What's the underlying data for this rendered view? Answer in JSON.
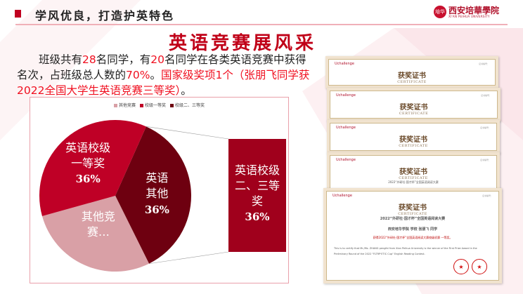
{
  "header": {
    "title": "学风优良，打造护英特色",
    "logo": {
      "name": "西安培華學院",
      "english": "XI'AN PEIHUA UNIVERSITY",
      "seal": "培华"
    }
  },
  "main_title": "英语竞赛展风采",
  "paragraph": {
    "p1": "班级共有",
    "n1": "28",
    "p2": "名同学，有",
    "n2": "20",
    "p3": "名同学在各类英语竞赛中获得名次，占班级总人数的",
    "n3": "70%",
    "p4": "。",
    "highlight": "国家级奖项1个（张朋飞同学获2022全国大学生英语竞赛三等奖）",
    "p5": "。"
  },
  "chart_data": {
    "type": "pie-of-bar",
    "legend": [
      "其他竞赛",
      "校级一等奖",
      "校级二、三等奖"
    ],
    "legend_placement": "top",
    "slices": [
      {
        "label": "英语其他",
        "line1": "英语",
        "line2": "其他",
        "value": 36,
        "pct": "36%",
        "color": "#6e0010"
      },
      {
        "label": "其他竞赛…",
        "line1": "其他竞",
        "line2": "赛…",
        "value": 28,
        "pct": "",
        "color": "#d9a0a6"
      },
      {
        "label": "英语校级一等奖",
        "line1": "英语校级",
        "line2": "一等奖",
        "value": 36,
        "pct": "36%",
        "color": "#bf0026"
      }
    ],
    "bar": {
      "line1": "英语校级",
      "line2": "二、三等",
      "line3": "奖",
      "pct": "36%",
      "color": "#a0001c"
    }
  },
  "certificates": {
    "brand": "Uchallenge",
    "title": "获奖证书",
    "subtitle": "CERTIFICATE",
    "contest": "2022“外研社·国才杯”全国英语阅读大赛",
    "name_line": "西安培华学院 学校 张朋飞 同学",
    "award_line": "获得2022“外研社·国才杯”全国英语阅读大赛校级初赛 一等奖。",
    "en_line": "This is to certify that Mr./Ms. ZHANG pengfei from Xian Peihua University is the winner of the First Prize Award in the Preliminary Round of the 2022 \"FLTRP·ETIC Cup\" English Reading Contest.",
    "cert_no": "证书编号：",
    "seal": "★"
  }
}
